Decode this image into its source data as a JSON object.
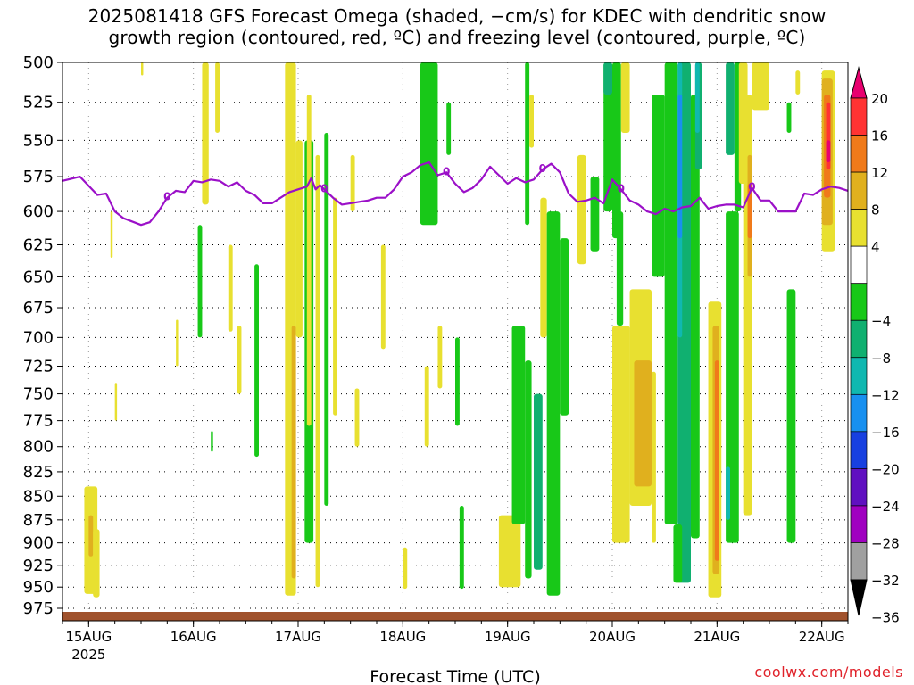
{
  "title": {
    "line1": "2025081418 GFS Forecast Omega (shaded, −cm/s) for KDEC with dendritic snow",
    "line2": "growth region (contoured, red, ºC) and freezing level (contoured, purple, ºC)"
  },
  "watermark": "coolwx.com/models",
  "chart_data": {
    "type": "heatmap",
    "xlabel": "Forecast Time (UTC)",
    "ylabel": "",
    "x_ticks": [
      {
        "label": "15AUG",
        "sub": "2025",
        "hours": 6
      },
      {
        "label": "16AUG",
        "sub": "",
        "hours": 30
      },
      {
        "label": "17AUG",
        "sub": "",
        "hours": 54
      },
      {
        "label": "18AUG",
        "sub": "",
        "hours": 78
      },
      {
        "label": "19AUG",
        "sub": "",
        "hours": 102
      },
      {
        "label": "20AUG",
        "sub": "",
        "hours": 126
      },
      {
        "label": "21AUG",
        "sub": "",
        "hours": 150
      },
      {
        "label": "22AUG",
        "sub": "",
        "hours": 174
      }
    ],
    "xlim_hours": [
      0,
      180
    ],
    "y_levels_hpa": [
      500,
      525,
      550,
      575,
      600,
      625,
      650,
      675,
      700,
      725,
      750,
      775,
      800,
      825,
      850,
      875,
      900,
      925,
      950,
      975
    ],
    "ylim_hpa": [
      500,
      990
    ],
    "y_scale": "log-pressure",
    "grid": true,
    "colorbar": {
      "labels": [
        "20",
        "16",
        "12",
        "8",
        "4",
        "−4",
        "−8",
        "−12",
        "−16",
        "−20",
        "−24",
        "−28",
        "−32",
        "−36"
      ],
      "colors": [
        "#e8006f",
        "#ff3333",
        "#f07a1a",
        "#e0b01e",
        "#e8e030",
        "#ffffff",
        "#18c818",
        "#10b070",
        "#10b8b0",
        "#1890f0",
        "#1840e0",
        "#6010c0",
        "#a000c0",
        "#a0a0a0",
        "#000000"
      ]
    },
    "freezing_level_label": "0",
    "freezing_level": [
      [
        0,
        578
      ],
      [
        4,
        575
      ],
      [
        8,
        588
      ],
      [
        10,
        587
      ],
      [
        12,
        600
      ],
      [
        14,
        605
      ],
      [
        18,
        610
      ],
      [
        20,
        608
      ],
      [
        22,
        600
      ],
      [
        24,
        590
      ],
      [
        26,
        585
      ],
      [
        28,
        586
      ],
      [
        30,
        578
      ],
      [
        32,
        579
      ],
      [
        34,
        577
      ],
      [
        36,
        578
      ],
      [
        38,
        582
      ],
      [
        40,
        579
      ],
      [
        42,
        585
      ],
      [
        44,
        588
      ],
      [
        46,
        594
      ],
      [
        48,
        594
      ],
      [
        50,
        590
      ],
      [
        52,
        586
      ],
      [
        54,
        584
      ],
      [
        56,
        582
      ],
      [
        57,
        576
      ],
      [
        58,
        584
      ],
      [
        59,
        581
      ],
      [
        60,
        584
      ],
      [
        62,
        590
      ],
      [
        64,
        595
      ],
      [
        66,
        594
      ],
      [
        68,
        593
      ],
      [
        70,
        592
      ],
      [
        72,
        590
      ],
      [
        74,
        590
      ],
      [
        76,
        584
      ],
      [
        78,
        575
      ],
      [
        80,
        572
      ],
      [
        82,
        567
      ],
      [
        84,
        565
      ],
      [
        86,
        574
      ],
      [
        88,
        572
      ],
      [
        90,
        580
      ],
      [
        92,
        586
      ],
      [
        94,
        583
      ],
      [
        96,
        577
      ],
      [
        98,
        568
      ],
      [
        100,
        574
      ],
      [
        102,
        580
      ],
      [
        104,
        576
      ],
      [
        106,
        579
      ],
      [
        108,
        577
      ],
      [
        110,
        570
      ],
      [
        112,
        566
      ],
      [
        114,
        572
      ],
      [
        116,
        587
      ],
      [
        118,
        593
      ],
      [
        120,
        592
      ],
      [
        122,
        590
      ],
      [
        124,
        594
      ],
      [
        126,
        577
      ],
      [
        128,
        584
      ],
      [
        130,
        592
      ],
      [
        132,
        595
      ],
      [
        134,
        600
      ],
      [
        136,
        602
      ],
      [
        138,
        598
      ],
      [
        140,
        600
      ],
      [
        142,
        597
      ],
      [
        144,
        596
      ],
      [
        146,
        590
      ],
      [
        148,
        598
      ],
      [
        150,
        596
      ],
      [
        152,
        595
      ],
      [
        154,
        595
      ],
      [
        156,
        597
      ],
      [
        158,
        583
      ],
      [
        160,
        592
      ],
      [
        162,
        592
      ],
      [
        164,
        600
      ],
      [
        166,
        600
      ],
      [
        168,
        600
      ],
      [
        170,
        587
      ],
      [
        172,
        588
      ],
      [
        174,
        584
      ],
      [
        176,
        582
      ],
      [
        178,
        583
      ],
      [
        180,
        585
      ]
    ],
    "omega_regions": [
      {
        "value": 4,
        "t0": 5,
        "t1": 8,
        "p_top": 840,
        "p_bot": 958
      },
      {
        "value": 8,
        "t0": 6,
        "t1": 7,
        "p_top": 870,
        "p_bot": 915
      },
      {
        "value": 4,
        "t0": 7,
        "t1": 8.5,
        "p_top": 885,
        "p_bot": 962
      },
      {
        "value": 4,
        "t0": 12,
        "t1": 12.5,
        "p_top": 740,
        "p_bot": 775
      },
      {
        "value": 4,
        "t0": 11,
        "t1": 11.5,
        "p_top": 600,
        "p_bot": 635
      },
      {
        "value": 4,
        "t0": 18,
        "t1": 18.5,
        "p_top": 500,
        "p_bot": 508
      },
      {
        "value": 4,
        "t0": 26,
        "t1": 26.5,
        "p_top": 685,
        "p_bot": 725
      },
      {
        "value": -4,
        "t0": 31,
        "t1": 32,
        "p_top": 610,
        "p_bot": 700
      },
      {
        "value": -4,
        "t0": 34,
        "t1": 34.5,
        "p_top": 785,
        "p_bot": 805
      },
      {
        "value": 4,
        "t0": 32,
        "t1": 33.5,
        "p_top": 500,
        "p_bot": 595
      },
      {
        "value": 4,
        "t0": 35,
        "t1": 36,
        "p_top": 500,
        "p_bot": 545
      },
      {
        "value": 4,
        "t0": 38,
        "t1": 39,
        "p_top": 625,
        "p_bot": 695
      },
      {
        "value": 4,
        "t0": 40,
        "t1": 41,
        "p_top": 690,
        "p_bot": 750
      },
      {
        "value": -4,
        "t0": 44,
        "t1": 45,
        "p_top": 640,
        "p_bot": 810
      },
      {
        "value": 4,
        "t0": 51,
        "t1": 53.5,
        "p_top": 500,
        "p_bot": 960
      },
      {
        "value": 8,
        "t0": 52.5,
        "t1": 53.5,
        "p_top": 690,
        "p_bot": 940
      },
      {
        "value": 4,
        "t0": 53.5,
        "t1": 55,
        "p_top": 550,
        "p_bot": 700
      },
      {
        "value": -4,
        "t0": 55.5,
        "t1": 57.5,
        "p_top": 550,
        "p_bot": 900
      },
      {
        "value": 4,
        "t0": 56,
        "t1": 57,
        "p_top": 520,
        "p_bot": 780
      },
      {
        "value": 4,
        "t0": 58,
        "t1": 59,
        "p_top": 560,
        "p_bot": 950
      },
      {
        "value": -4,
        "t0": 60,
        "t1": 61,
        "p_top": 545,
        "p_bot": 860
      },
      {
        "value": 4,
        "t0": 62,
        "t1": 63,
        "p_top": 590,
        "p_bot": 770
      },
      {
        "value": 4,
        "t0": 66,
        "t1": 67,
        "p_top": 560,
        "p_bot": 600
      },
      {
        "value": 4,
        "t0": 67,
        "t1": 68,
        "p_top": 745,
        "p_bot": 800
      },
      {
        "value": 4,
        "t0": 73,
        "t1": 74,
        "p_top": 625,
        "p_bot": 710
      },
      {
        "value": 4,
        "t0": 78,
        "t1": 79,
        "p_top": 905,
        "p_bot": 952
      },
      {
        "value": 4,
        "t0": 83,
        "t1": 84,
        "p_top": 725,
        "p_bot": 800
      },
      {
        "value": -4,
        "t0": 82,
        "t1": 86,
        "p_top": 500,
        "p_bot": 610
      },
      {
        "value": -4,
        "t0": 88,
        "t1": 89,
        "p_top": 525,
        "p_bot": 560
      },
      {
        "value": 4,
        "t0": 86,
        "t1": 87,
        "p_top": 690,
        "p_bot": 745
      },
      {
        "value": -4,
        "t0": 90,
        "t1": 91,
        "p_top": 700,
        "p_bot": 780
      },
      {
        "value": -4,
        "t0": 91,
        "t1": 92,
        "p_top": 860,
        "p_bot": 952
      },
      {
        "value": 4,
        "t0": 100,
        "t1": 105,
        "p_top": 870,
        "p_bot": 950
      },
      {
        "value": -4,
        "t0": 103,
        "t1": 106,
        "p_top": 690,
        "p_bot": 880
      },
      {
        "value": -4,
        "t0": 106,
        "t1": 107.5,
        "p_top": 720,
        "p_bot": 940
      },
      {
        "value": -8,
        "t0": 108,
        "t1": 110,
        "p_top": 750,
        "p_bot": 930
      },
      {
        "value": -4,
        "t0": 106,
        "t1": 107,
        "p_top": 500,
        "p_bot": 610
      },
      {
        "value": 4,
        "t0": 107,
        "t1": 108,
        "p_top": 520,
        "p_bot": 555
      },
      {
        "value": 4,
        "t0": 109.5,
        "t1": 111,
        "p_top": 590,
        "p_bot": 700
      },
      {
        "value": -4,
        "t0": 111,
        "t1": 114,
        "p_top": 600,
        "p_bot": 960
      },
      {
        "value": -4,
        "t0": 114,
        "t1": 116,
        "p_top": 620,
        "p_bot": 770
      },
      {
        "value": 4,
        "t0": 118,
        "t1": 120,
        "p_top": 560,
        "p_bot": 640
      },
      {
        "value": -4,
        "t0": 121,
        "t1": 123,
        "p_top": 575,
        "p_bot": 630
      },
      {
        "value": -4,
        "t0": 124,
        "t1": 126,
        "p_top": 500,
        "p_bot": 600
      },
      {
        "value": -8,
        "t0": 124,
        "t1": 126,
        "p_top": 500,
        "p_bot": 520
      },
      {
        "value": -4,
        "t0": 126,
        "t1": 128,
        "p_top": 500,
        "p_bot": 620
      },
      {
        "value": -4,
        "t0": 127,
        "t1": 128.5,
        "p_top": 600,
        "p_bot": 690
      },
      {
        "value": 4,
        "t0": 126,
        "t1": 130,
        "p_top": 690,
        "p_bot": 900
      },
      {
        "value": 4,
        "t0": 128,
        "t1": 130,
        "p_top": 500,
        "p_bot": 545
      },
      {
        "value": 4,
        "t0": 130,
        "t1": 135,
        "p_top": 660,
        "p_bot": 860
      },
      {
        "value": 8,
        "t0": 131,
        "t1": 135,
        "p_top": 720,
        "p_bot": 840
      },
      {
        "value": -4,
        "t0": 135,
        "t1": 138,
        "p_top": 520,
        "p_bot": 650
      },
      {
        "value": 4,
        "t0": 135,
        "t1": 136,
        "p_top": 730,
        "p_bot": 900
      },
      {
        "value": -4,
        "t0": 138,
        "t1": 141,
        "p_top": 500,
        "p_bot": 880
      },
      {
        "value": -8,
        "t0": 141,
        "t1": 144,
        "p_top": 500,
        "p_bot": 945
      },
      {
        "value": -12,
        "t0": 141,
        "t1": 142,
        "p_top": 500,
        "p_bot": 700
      },
      {
        "value": -16,
        "t0": 141,
        "t1": 142,
        "p_top": 520,
        "p_bot": 620
      },
      {
        "value": -4,
        "t0": 140,
        "t1": 142,
        "p_top": 880,
        "p_bot": 945
      },
      {
        "value": -4,
        "t0": 144,
        "t1": 146,
        "p_top": 520,
        "p_bot": 895
      },
      {
        "value": -8,
        "t0": 145,
        "t1": 146.5,
        "p_top": 500,
        "p_bot": 570
      },
      {
        "value": -12,
        "t0": 145,
        "t1": 146,
        "p_top": 500,
        "p_bot": 545
      },
      {
        "value": 4,
        "t0": 148,
        "t1": 151,
        "p_top": 670,
        "p_bot": 962
      },
      {
        "value": 8,
        "t0": 149,
        "t1": 150.5,
        "p_top": 690,
        "p_bot": 935
      },
      {
        "value": 12,
        "t0": 149.5,
        "t1": 150.5,
        "p_top": 720,
        "p_bot": 920
      },
      {
        "value": -4,
        "t0": 152,
        "t1": 155,
        "p_top": 600,
        "p_bot": 900
      },
      {
        "value": -4,
        "t0": 154,
        "t1": 155.5,
        "p_top": 500,
        "p_bot": 600
      },
      {
        "value": -8,
        "t0": 152,
        "t1": 154,
        "p_top": 500,
        "p_bot": 560
      },
      {
        "value": -12,
        "t0": 152,
        "t1": 153,
        "p_top": 820,
        "p_bot": 875
      },
      {
        "value": 4,
        "t0": 155,
        "t1": 157,
        "p_top": 500,
        "p_bot": 580
      },
      {
        "value": 4,
        "t0": 156,
        "t1": 158,
        "p_top": 520,
        "p_bot": 870
      },
      {
        "value": 8,
        "t0": 157,
        "t1": 158,
        "p_top": 560,
        "p_bot": 650
      },
      {
        "value": 12,
        "t0": 157,
        "t1": 158,
        "p_top": 580,
        "p_bot": 620
      },
      {
        "value": 4,
        "t0": 158,
        "t1": 162,
        "p_top": 500,
        "p_bot": 530
      },
      {
        "value": -4,
        "t0": 166,
        "t1": 168,
        "p_top": 660,
        "p_bot": 900
      },
      {
        "value": -4,
        "t0": 166,
        "t1": 167,
        "p_top": 525,
        "p_bot": 545
      },
      {
        "value": 4,
        "t0": 168,
        "t1": 169,
        "p_top": 505,
        "p_bot": 520
      },
      {
        "value": 4,
        "t0": 174,
        "t1": 177,
        "p_top": 505,
        "p_bot": 630
      },
      {
        "value": 8,
        "t0": 174,
        "t1": 176.5,
        "p_top": 510,
        "p_bot": 610
      },
      {
        "value": 12,
        "t0": 174.5,
        "t1": 176,
        "p_top": 520,
        "p_bot": 590
      },
      {
        "value": 16,
        "t0": 175,
        "t1": 176,
        "p_top": 525,
        "p_bot": 570
      },
      {
        "value": 20,
        "t0": 175,
        "t1": 176,
        "p_top": 550,
        "p_bot": 565
      }
    ]
  }
}
